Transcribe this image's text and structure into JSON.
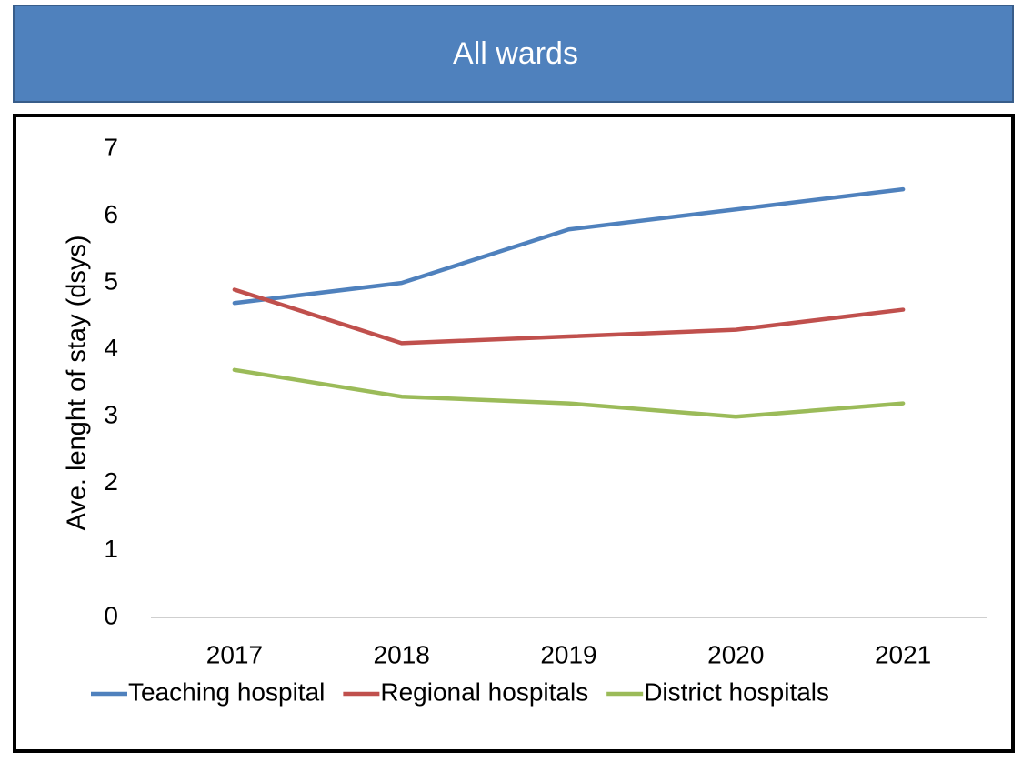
{
  "chart_data": {
    "type": "line",
    "title": "All wards",
    "y_label": "Ave. lenght of stay (dsys)",
    "categories": [
      "2017",
      "2018",
      "2019",
      "2020",
      "2021"
    ],
    "series": [
      {
        "name": "Teaching hospital",
        "color": "#4f81bd",
        "values": [
          4.7,
          5.0,
          5.8,
          6.1,
          6.4
        ]
      },
      {
        "name": "Regional hospitals",
        "color": "#c0504d",
        "values": [
          4.9,
          4.1,
          4.2,
          4.3,
          4.6
        ]
      },
      {
        "name": "District hospitals",
        "color": "#9bbb59",
        "values": [
          3.7,
          3.3,
          3.2,
          3.0,
          3.2
        ]
      }
    ],
    "ylim": [
      0,
      7
    ],
    "yticks": [
      0,
      1,
      2,
      3,
      4,
      5,
      6,
      7
    ],
    "grid": false,
    "legend": "bottom"
  }
}
